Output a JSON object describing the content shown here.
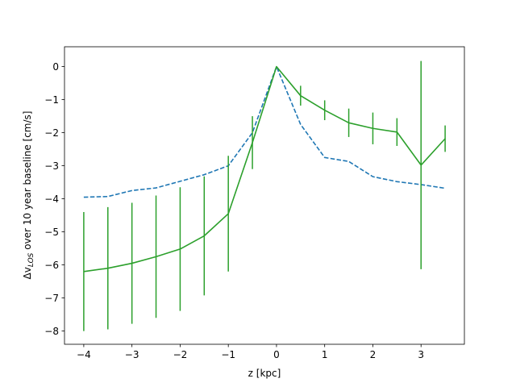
{
  "chart_data": {
    "type": "line",
    "title": "",
    "xlabel": "z [kpc]",
    "ylabel_prefix": "Δv",
    "ylabel_sub": "LOS",
    "ylabel_suffix": " over 10 year baseline [cm/s]",
    "xlim": [
      -4.4,
      3.9
    ],
    "ylim": [
      -8.4,
      0.6
    ],
    "xticks": [
      -4,
      -3,
      -2,
      -1,
      0,
      1,
      2,
      3
    ],
    "yticks": [
      -8,
      -7,
      -6,
      -5,
      -4,
      -3,
      -2,
      -1,
      0
    ],
    "grid": false,
    "legend": "none",
    "x": [
      -4,
      -3.5,
      -3,
      -2.5,
      -2,
      -1.5,
      -1,
      -0.5,
      0,
      0.5,
      1,
      1.5,
      2,
      2.5,
      3,
      3.5
    ],
    "series": [
      {
        "style": "dashed",
        "color": "#1f77b4",
        "values": [
          -3.95,
          -3.93,
          -3.75,
          -3.67,
          -3.47,
          -3.27,
          -3.0,
          -2.0,
          0.0,
          -1.75,
          -2.75,
          -2.87,
          -3.33,
          -3.48,
          -3.57,
          -3.68
        ]
      },
      {
        "style": "solid-errorbar",
        "color": "#2ca02c",
        "values": [
          -6.2,
          -6.1,
          -5.95,
          -5.75,
          -5.52,
          -5.12,
          -4.45,
          -2.3,
          0.0,
          -0.88,
          -1.32,
          -1.7,
          -1.87,
          -1.98,
          -2.98,
          -2.18
        ],
        "yerr": [
          1.8,
          1.85,
          1.83,
          1.85,
          1.87,
          1.8,
          1.75,
          0.8,
          0.0,
          0.3,
          0.3,
          0.43,
          0.48,
          0.42,
          3.15,
          0.4
        ]
      }
    ]
  }
}
